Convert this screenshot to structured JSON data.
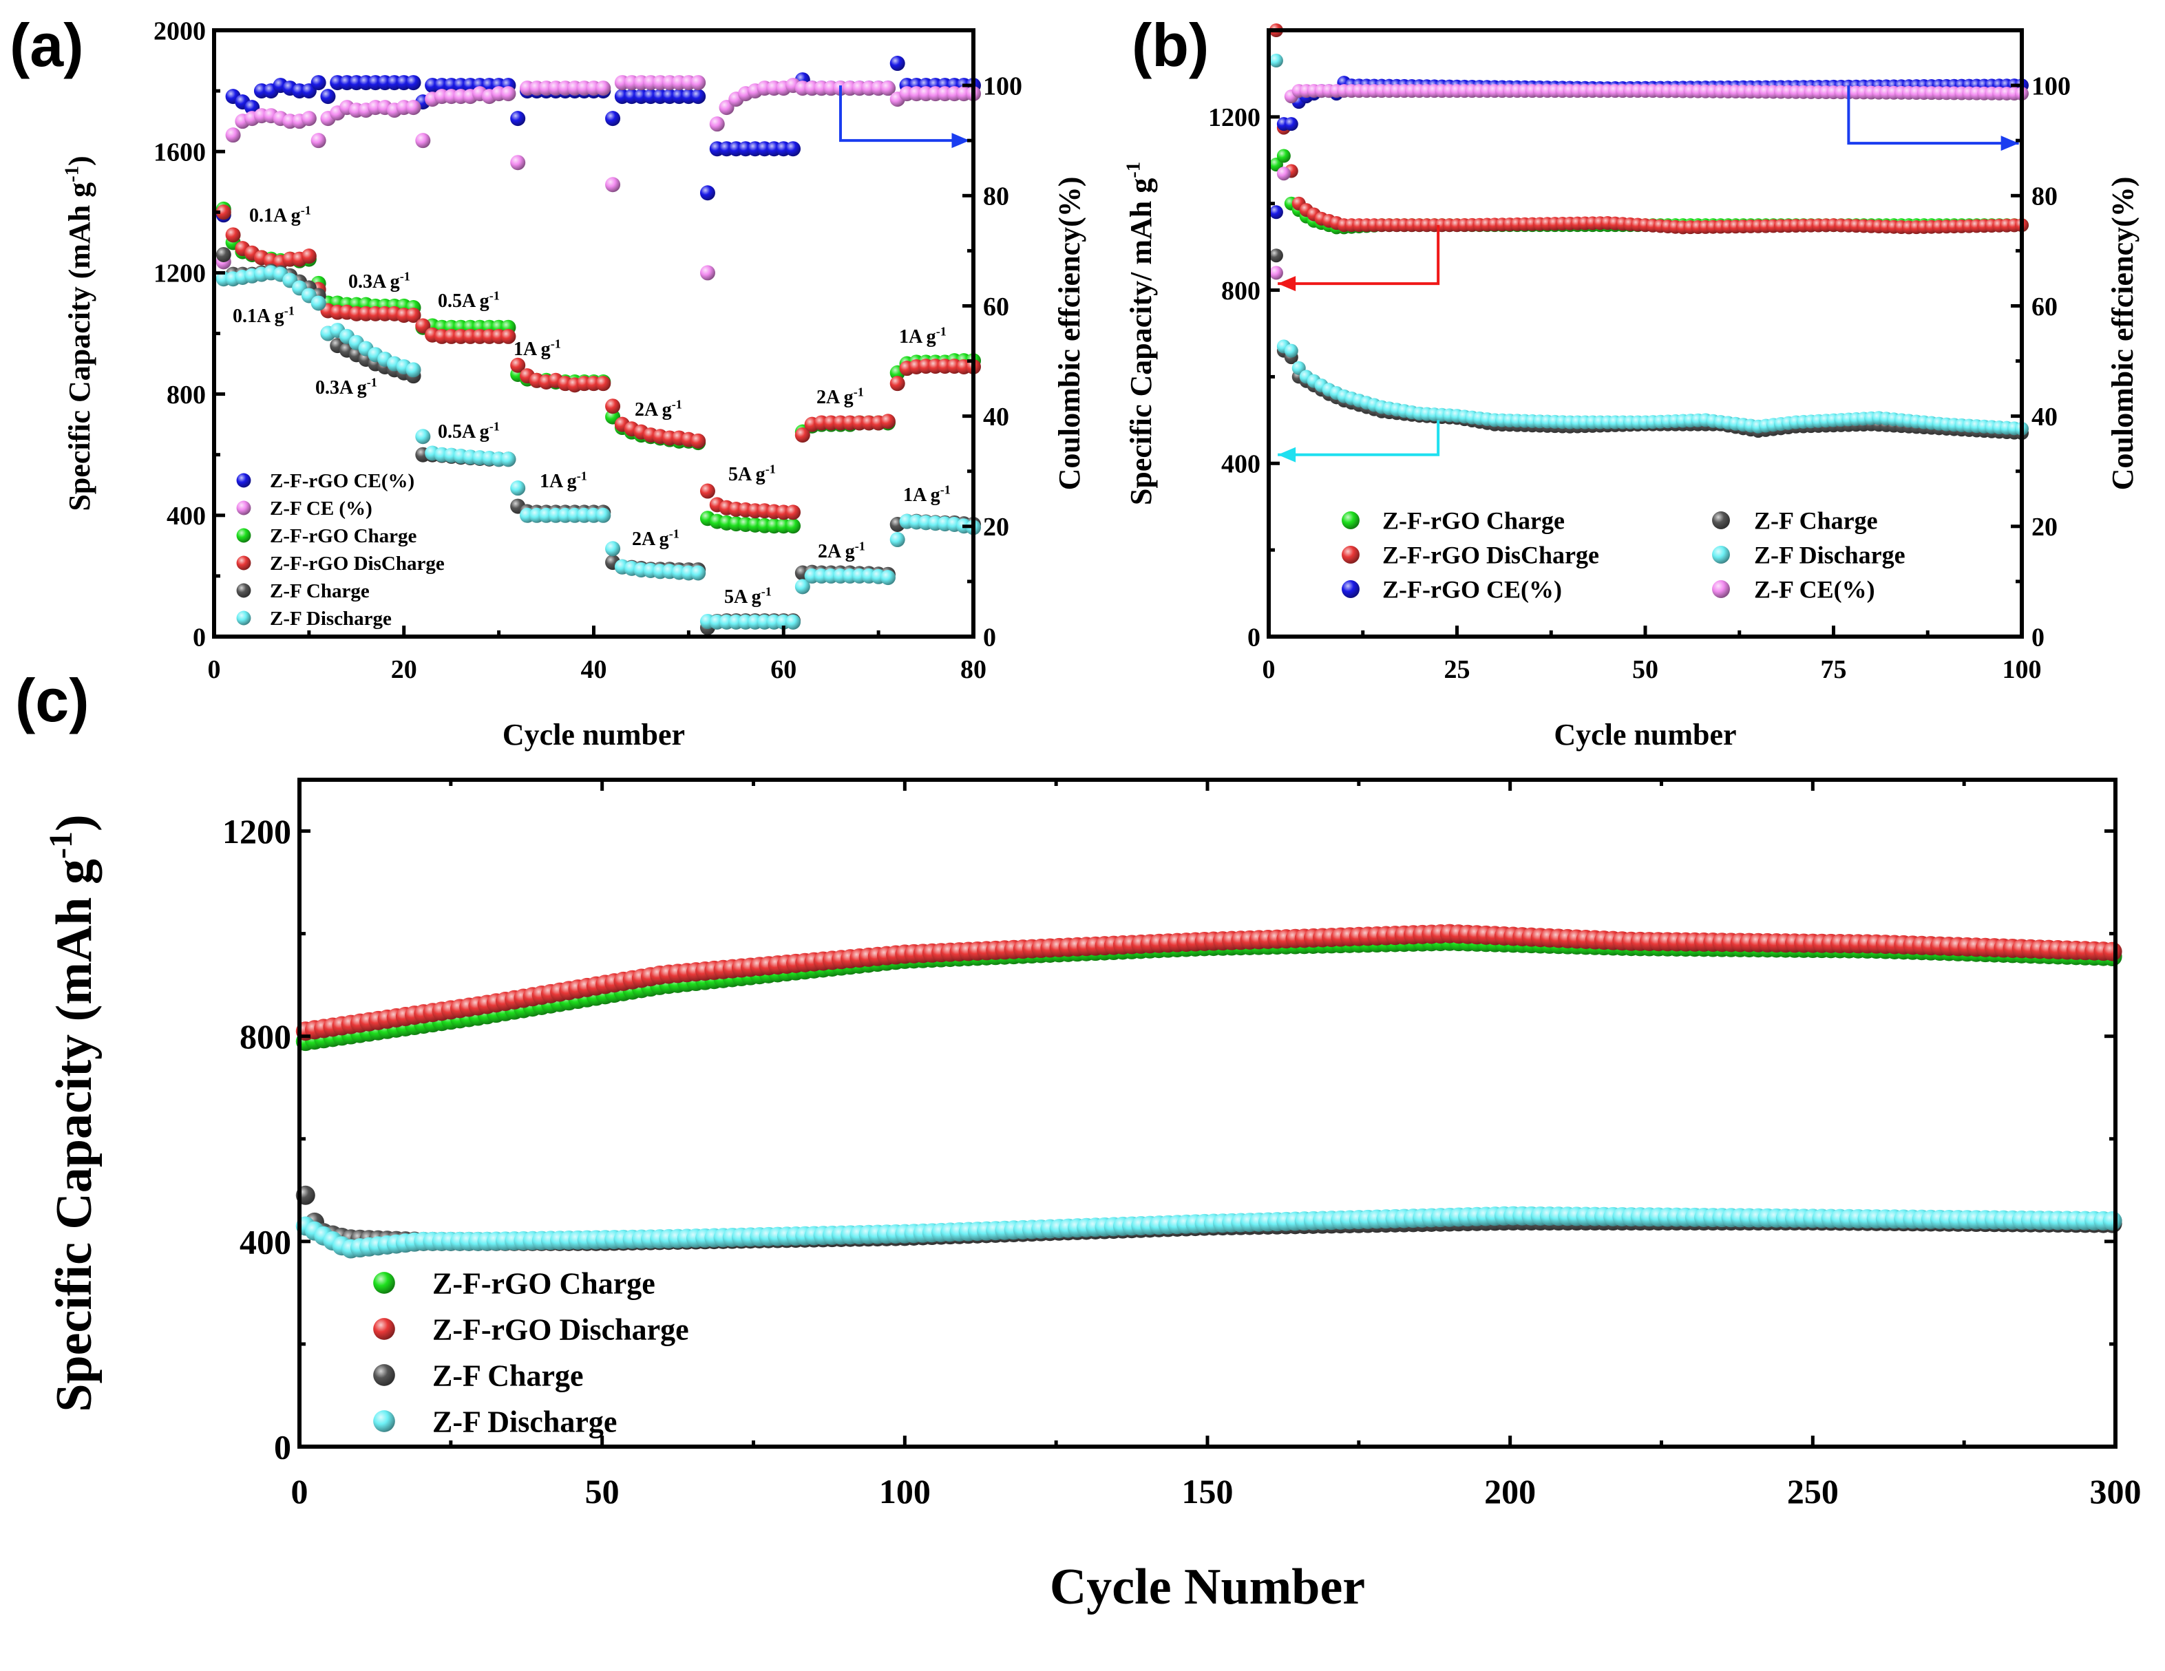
{
  "chart_data": [
    {
      "panel": "(a)",
      "type": "scatter",
      "xlabel": "Cycle number",
      "ylabel": {
        "text": "Specific Capacity (mAh g",
        "sup": "-1",
        "end": ")"
      },
      "y2label": "Coulombic effciency(%)",
      "xlim": [
        0,
        80
      ],
      "ylim": [
        0,
        2000
      ],
      "y2lim": [
        0,
        110
      ],
      "xticks": [
        0,
        20,
        40,
        60,
        80
      ],
      "yticks": [
        0,
        400,
        800,
        1200,
        1600,
        2000
      ],
      "y2ticks": [
        0,
        20,
        40,
        60,
        80,
        100
      ],
      "legend_position": "bottom-left",
      "x_start": 1,
      "series": [
        {
          "name": "Z-F-rGO CE(%)",
          "color": "#1a1ae6",
          "axis": "right",
          "y": [
            76.5,
            98,
            97,
            96,
            99,
            99,
            100,
            99.5,
            99,
            99,
            100.5,
            98,
            100.5,
            100.5,
            100.5,
            100.5,
            100.5,
            100.5,
            100.5,
            100.5,
            100.5,
            97,
            100,
            100,
            100,
            100,
            100,
            100,
            100,
            100,
            100,
            94,
            99,
            99,
            99,
            99,
            99,
            99,
            99,
            99,
            99,
            94,
            98,
            98,
            98,
            98,
            98,
            98,
            98,
            98,
            98,
            80.5,
            88.5,
            88.5,
            88.5,
            88.5,
            88.5,
            88.5,
            88.5,
            88.5,
            88.5,
            101,
            99.5,
            99.5,
            99.5,
            99.5,
            99.5,
            99.5,
            99.5,
            99.5,
            99.5,
            104,
            100,
            100,
            100,
            100,
            100,
            100,
            100,
            100
          ]
        },
        {
          "name": "Z-F CE (%)",
          "color": "#f28cf0",
          "axis": "right",
          "y": [
            68,
            91,
            93.5,
            94,
            94.5,
            94.5,
            94,
            93.5,
            93.5,
            94,
            90,
            94,
            95,
            96,
            95.5,
            95.5,
            96,
            96,
            95.5,
            96,
            96,
            90,
            97.5,
            98,
            98,
            98,
            98,
            98.5,
            98,
            98.5,
            98.5,
            86,
            99.5,
            99.5,
            99.5,
            99.5,
            99.5,
            99.5,
            99.5,
            99.5,
            99.5,
            82,
            100.5,
            100.5,
            100.5,
            100.5,
            100.5,
            100.5,
            100.5,
            100.5,
            100.5,
            66,
            93,
            96,
            97.5,
            98.5,
            99,
            99.5,
            99.5,
            99.5,
            100,
            99.5,
            99.5,
            99.5,
            99.5,
            99.5,
            99.5,
            99.5,
            99.5,
            99.5,
            99.5,
            97.5,
            98.5,
            98.5,
            98.5,
            98.5,
            98.5,
            98.5,
            98.5,
            98.5
          ]
        },
        {
          "name": "Z-F-rGO Charge",
          "color": "#1ee01e",
          "axis": "left",
          "y": [
            1410,
            1300,
            1270,
            1260,
            1250,
            1245,
            1240,
            1245,
            1240,
            1245,
            1165,
            1100,
            1100,
            1095,
            1095,
            1095,
            1090,
            1090,
            1090,
            1090,
            1085,
            1020,
            1025,
            1020,
            1020,
            1020,
            1020,
            1020,
            1020,
            1020,
            1020,
            865,
            850,
            845,
            845,
            840,
            840,
            840,
            840,
            840,
            840,
            725,
            690,
            675,
            665,
            660,
            655,
            650,
            645,
            645,
            640,
            390,
            380,
            375,
            372,
            370,
            368,
            366,
            365,
            365,
            365,
            675,
            695,
            700,
            700,
            700,
            700,
            705,
            705,
            705,
            705,
            870,
            900,
            905,
            905,
            905,
            905,
            910,
            910,
            910
          ]
        },
        {
          "name": "Z-F-rGO DisCharge",
          "color": "#e83838",
          "axis": "left",
          "y": [
            1400,
            1325,
            1280,
            1265,
            1250,
            1240,
            1235,
            1245,
            1245,
            1255,
            1145,
            1075,
            1070,
            1070,
            1065,
            1065,
            1065,
            1065,
            1065,
            1060,
            1060,
            1025,
            995,
            990,
            990,
            990,
            990,
            990,
            990,
            990,
            990,
            895,
            860,
            845,
            840,
            845,
            835,
            830,
            835,
            835,
            835,
            760,
            700,
            685,
            675,
            665,
            660,
            655,
            655,
            650,
            645,
            480,
            435,
            425,
            420,
            418,
            415,
            415,
            412,
            410,
            410,
            665,
            700,
            705,
            705,
            705,
            705,
            705,
            705,
            705,
            710,
            835,
            885,
            890,
            892,
            892,
            892,
            892,
            890,
            890
          ]
        },
        {
          "name": "Z-F Charge",
          "color": "#555555",
          "axis": "left",
          "y": [
            1260,
            1195,
            1195,
            1195,
            1200,
            1205,
            1200,
            1190,
            1170,
            1150,
            1125,
            1000,
            960,
            945,
            930,
            915,
            900,
            890,
            880,
            870,
            860,
            600,
            600,
            598,
            595,
            592,
            590,
            588,
            586,
            585,
            585,
            430,
            412,
            410,
            410,
            410,
            410,
            410,
            410,
            410,
            410,
            245,
            230,
            228,
            225,
            222,
            222,
            222,
            220,
            220,
            220,
            30,
            50,
            52,
            52,
            52,
            52,
            52,
            52,
            52,
            52,
            210,
            212,
            210,
            210,
            210,
            210,
            208,
            208,
            206,
            205,
            370,
            380,
            380,
            378,
            376,
            375,
            375,
            372,
            370
          ]
        },
        {
          "name": "Z-F Discharge",
          "color": "#6ef0f5",
          "axis": "left",
          "y": [
            1180,
            1180,
            1185,
            1190,
            1195,
            1200,
            1195,
            1175,
            1150,
            1125,
            1100,
            1000,
            1010,
            990,
            970,
            950,
            930,
            915,
            900,
            890,
            880,
            660,
            605,
            600,
            598,
            595,
            592,
            590,
            588,
            585,
            585,
            490,
            400,
            400,
            400,
            400,
            400,
            400,
            400,
            400,
            400,
            290,
            230,
            225,
            220,
            218,
            215,
            215,
            212,
            210,
            210,
            50,
            48,
            48,
            48,
            48,
            48,
            48,
            48,
            48,
            48,
            165,
            200,
            200,
            200,
            200,
            200,
            200,
            200,
            198,
            195,
            320,
            380,
            378,
            376,
            374,
            372,
            370,
            365,
            360
          ]
        }
      ],
      "annotations": [
        {
          "text": "0.1A g",
          "sup": "-1"
        },
        {
          "text": "0.1A g",
          "sup": "-1"
        },
        {
          "text": "0.3A g",
          "sup": "-1"
        },
        {
          "text": "0.3A g",
          "sup": "-1"
        },
        {
          "text": "0.5A g",
          "sup": "-1"
        },
        {
          "text": "0.5A g",
          "sup": "-1"
        },
        {
          "text": "1A g",
          "sup": "-1"
        },
        {
          "text": "1A g",
          "sup": "-1"
        },
        {
          "text": "2A g",
          "sup": "-1"
        },
        {
          "text": "2A g",
          "sup": "-1"
        },
        {
          "text": "5A g",
          "sup": "-1"
        },
        {
          "text": "5A g",
          "sup": "-1"
        },
        {
          "text": "2A g",
          "sup": "-1"
        },
        {
          "text": "2A g",
          "sup": "-1"
        },
        {
          "text": "1A g",
          "sup": "-1"
        },
        {
          "text": "1A g",
          "sup": "-1"
        }
      ]
    },
    {
      "panel": "(b)",
      "type": "scatter",
      "xlabel": "Cycle number",
      "ylabel": {
        "text": "Specific Capacity/ mAh g",
        "sup": "-1",
        "end": ""
      },
      "y2label": "Coulombic effciency(%)",
      "xlim": [
        0,
        100
      ],
      "ylim": [
        0,
        1400
      ],
      "y2lim": [
        0,
        110
      ],
      "xticks": [
        0,
        25,
        50,
        75,
        100
      ],
      "yticks": [
        0,
        400,
        800,
        1200
      ],
      "y2ticks": [
        0,
        20,
        40,
        60,
        80,
        100
      ],
      "legend_position": "bottom-center (two columns)",
      "series": [
        {
          "name": "Z-F-rGO Charge",
          "color": "#1ee01e",
          "axis": "left",
          "x": [
            1,
            2,
            3,
            4,
            5,
            6,
            7,
            8,
            9,
            10,
            15,
            25,
            50,
            75,
            100
          ],
          "y": [
            1090,
            1110,
            1000,
            985,
            970,
            960,
            955,
            950,
            945,
            945,
            950,
            950,
            950,
            950,
            950
          ]
        },
        {
          "name": "Z-F-rGO DisCharge",
          "color": "#e83838",
          "axis": "left",
          "x": [
            1,
            2,
            3,
            4,
            5,
            6,
            7,
            8,
            9,
            10,
            15,
            25,
            45,
            50,
            55,
            75,
            85,
            100
          ],
          "y": [
            1400,
            1175,
            1075,
            1000,
            985,
            975,
            965,
            960,
            955,
            950,
            950,
            950,
            955,
            950,
            945,
            950,
            945,
            950
          ]
        },
        {
          "name": "Z-F-rGO CE(%)",
          "color": "#1a1ae6",
          "axis": "right",
          "x": [
            1,
            2,
            3,
            4,
            5,
            6,
            7,
            8,
            9,
            10,
            11,
            45,
            100
          ],
          "y": [
            77,
            93,
            93,
            97,
            98,
            98.5,
            99,
            99,
            98.5,
            100.5,
            100,
            99.5,
            100
          ]
        },
        {
          "name": "Z-F Charge",
          "color": "#555555",
          "axis": "left",
          "x": [
            1,
            2,
            3,
            4,
            5,
            6,
            8,
            10,
            12,
            15,
            20,
            25,
            30,
            40,
            50,
            60,
            65,
            70,
            80,
            90,
            100
          ],
          "y": [
            880,
            660,
            645,
            600,
            590,
            580,
            560,
            545,
            535,
            520,
            510,
            505,
            490,
            485,
            490,
            490,
            475,
            485,
            490,
            480,
            470
          ]
        },
        {
          "name": "Z-F Discharge",
          "color": "#6ef0f5",
          "axis": "left",
          "x": [
            1,
            2,
            3,
            4,
            5,
            6,
            8,
            10,
            12,
            15,
            20,
            25,
            30,
            40,
            50,
            58,
            65,
            70,
            81,
            90,
            100
          ],
          "y": [
            1330,
            670,
            660,
            620,
            600,
            590,
            570,
            555,
            545,
            530,
            515,
            510,
            500,
            495,
            495,
            500,
            485,
            495,
            505,
            490,
            480
          ]
        },
        {
          "name": "Z-F CE(%)",
          "color": "#f28cf0",
          "axis": "right",
          "x": [
            1,
            2,
            3,
            4,
            5,
            10,
            50,
            100
          ],
          "y": [
            66,
            84,
            98,
            99,
            99,
            99,
            99,
            98.5
          ]
        }
      ]
    },
    {
      "panel": "(c)",
      "type": "scatter",
      "xlabel": "Cycle Number",
      "ylabel": {
        "text": "Specific Capacity (mAh g",
        "sup": "-1",
        "end": ")"
      },
      "xlim": [
        0,
        300
      ],
      "ylim": [
        0,
        1300
      ],
      "xticks": [
        0,
        50,
        100,
        150,
        200,
        250,
        300
      ],
      "yticks": [
        0,
        400,
        800,
        1200
      ],
      "legend_position": "bottom-left",
      "series": [
        {
          "name": "Z-F-rGO Charge",
          "color": "#1ee01e",
          "x": [
            1,
            30,
            60,
            100,
            150,
            190,
            220,
            260,
            300
          ],
          "y": [
            790,
            840,
            900,
            950,
            975,
            985,
            975,
            970,
            955
          ]
        },
        {
          "name": "Z-F-rGO Discharge",
          "color": "#e83838",
          "x": [
            1,
            30,
            60,
            100,
            150,
            190,
            220,
            260,
            300
          ],
          "y": [
            810,
            860,
            920,
            960,
            985,
            1000,
            985,
            980,
            965
          ]
        },
        {
          "name": "Z-F  Charge",
          "color": "#555555",
          "x": [
            1,
            3,
            8,
            20,
            50,
            100,
            150,
            200,
            250,
            300
          ],
          "y": [
            490,
            420,
            405,
            400,
            400,
            410,
            430,
            440,
            440,
            435
          ]
        },
        {
          "name": "Z-F  Discharge",
          "color": "#6ef0f5",
          "x": [
            1,
            8,
            20,
            30,
            60,
            100,
            150,
            200,
            250,
            300
          ],
          "y": [
            430,
            385,
            400,
            400,
            405,
            415,
            435,
            450,
            445,
            440
          ]
        }
      ]
    }
  ]
}
